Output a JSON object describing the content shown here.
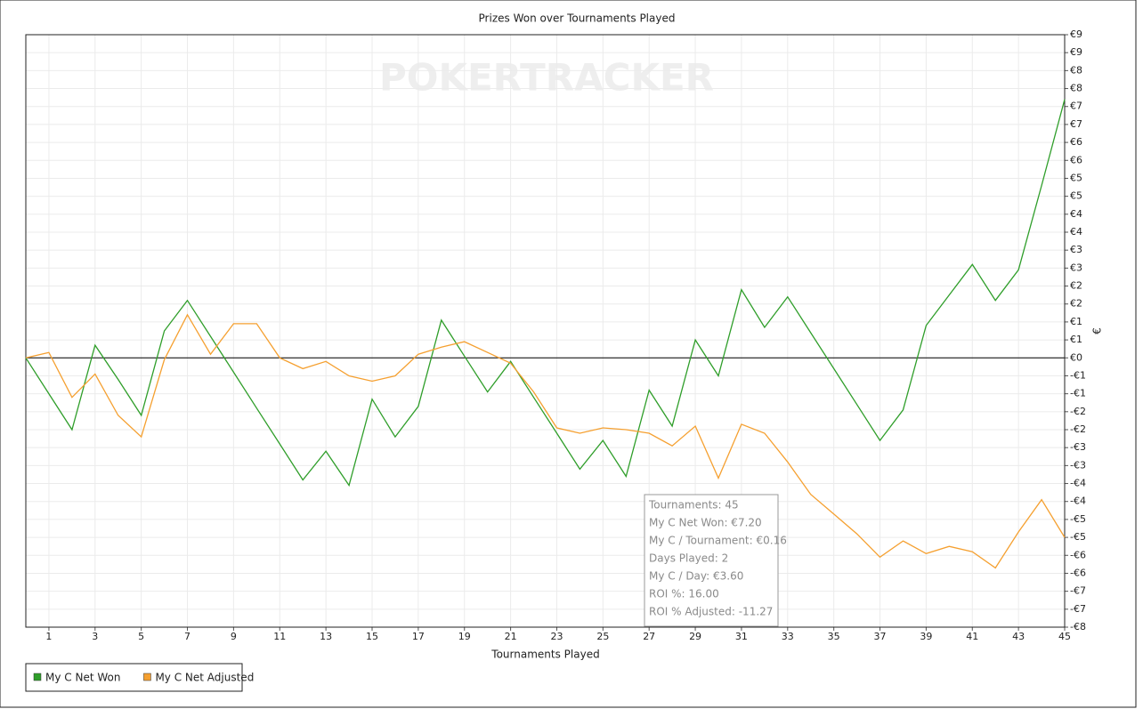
{
  "chart_data": {
    "type": "line",
    "title": "Prizes Won over Tournaments Played",
    "watermark": "POKERTRACKER",
    "x_label": "Tournaments Played",
    "y_label": "€",
    "x": [
      0,
      1,
      2,
      3,
      4,
      5,
      6,
      7,
      8,
      9,
      10,
      11,
      12,
      13,
      14,
      15,
      16,
      17,
      18,
      19,
      20,
      21,
      22,
      23,
      24,
      25,
      26,
      27,
      28,
      29,
      30,
      31,
      32,
      33,
      34,
      35,
      36,
      37,
      38,
      39,
      40,
      41,
      42,
      43,
      44,
      45
    ],
    "series": [
      {
        "name": "My C Net Won",
        "color": "#2f9e2a",
        "values": [
          0,
          -1.0,
          -2.0,
          0.35,
          -0.6,
          -1.6,
          0.75,
          1.6,
          0.6,
          -0.4,
          -1.4,
          -2.4,
          -3.4,
          -2.6,
          -3.55,
          -1.15,
          -2.2,
          -1.35,
          1.05,
          0.05,
          -0.95,
          -0.1,
          -1.1,
          -2.1,
          -3.1,
          -2.3,
          -3.3,
          -0.9,
          -1.9,
          0.5,
          -0.5,
          1.9,
          0.85,
          1.7,
          0.7,
          -0.3,
          -1.3,
          -2.3,
          -1.45,
          0.9,
          1.75,
          2.6,
          1.6,
          2.45,
          4.8,
          7.2
        ]
      },
      {
        "name": "My C Net Adjusted",
        "color": "#f5a030",
        "values": [
          0,
          0.15,
          -1.1,
          -0.45,
          -1.6,
          -2.2,
          -0.05,
          1.2,
          0.1,
          0.95,
          0.95,
          0,
          -0.3,
          -0.1,
          -0.5,
          -0.65,
          -0.5,
          0.1,
          0.3,
          0.45,
          0.15,
          -0.15,
          -0.95,
          -1.95,
          -2.1,
          -1.95,
          -2.0,
          -2.1,
          -2.45,
          -1.9,
          -3.35,
          -1.85,
          -2.1,
          -2.9,
          -3.8,
          -4.35,
          -4.9,
          -5.55,
          -5.1,
          -5.45,
          -5.25,
          -5.4,
          -5.85,
          -4.85,
          -3.95,
          -5.0
        ]
      }
    ],
    "xlim": [
      0,
      45
    ],
    "xticks": [
      1,
      3,
      5,
      7,
      9,
      11,
      13,
      15,
      17,
      19,
      21,
      23,
      25,
      27,
      29,
      31,
      33,
      35,
      37,
      39,
      41,
      43,
      45
    ],
    "ylim": [
      -7.5,
      9
    ],
    "yticks": [
      {
        "value": 9,
        "label": "€9"
      },
      {
        "value": 8.5,
        "label": "€9"
      },
      {
        "value": 8,
        "label": "€8"
      },
      {
        "value": 7.5,
        "label": "€8"
      },
      {
        "value": 7,
        "label": "€7"
      },
      {
        "value": 6.5,
        "label": "€7"
      },
      {
        "value": 6,
        "label": "€6"
      },
      {
        "value": 5.5,
        "label": "€6"
      },
      {
        "value": 5,
        "label": "€5"
      },
      {
        "value": 4.5,
        "label": "€5"
      },
      {
        "value": 4,
        "label": "€4"
      },
      {
        "value": 3.5,
        "label": "€4"
      },
      {
        "value": 3,
        "label": "€3"
      },
      {
        "value": 2.5,
        "label": "€3"
      },
      {
        "value": 2,
        "label": "€2"
      },
      {
        "value": 1.5,
        "label": "€2"
      },
      {
        "value": 1,
        "label": "€1"
      },
      {
        "value": 0.5,
        "label": "€1"
      },
      {
        "value": 0,
        "label": "€0"
      },
      {
        "value": -0.5,
        "label": "-€1"
      },
      {
        "value": -1,
        "label": "-€1"
      },
      {
        "value": -1.5,
        "label": "-€2"
      },
      {
        "value": -2,
        "label": "-€2"
      },
      {
        "value": -2.5,
        "label": "-€3"
      },
      {
        "value": -3,
        "label": "-€3"
      },
      {
        "value": -3.5,
        "label": "-€4"
      },
      {
        "value": -4,
        "label": "-€4"
      },
      {
        "value": -4.5,
        "label": "-€5"
      },
      {
        "value": -5,
        "label": "-€5"
      },
      {
        "value": -5.5,
        "label": "-€6"
      },
      {
        "value": -6,
        "label": "-€6"
      },
      {
        "value": -6.5,
        "label": "-€7"
      },
      {
        "value": -7,
        "label": "-€7"
      },
      {
        "value": -7.5,
        "label": "-€8"
      }
    ],
    "grid": true,
    "legend": "bottom-left",
    "tooltip": [
      "Tournaments: 45",
      "My C Net Won: €7.20",
      "My C / Tournament: €0.16",
      "Days Played: 2",
      "My C / Day: €3.60",
      "ROI %: 16.00",
      "ROI % Adjusted: -11.27"
    ]
  }
}
